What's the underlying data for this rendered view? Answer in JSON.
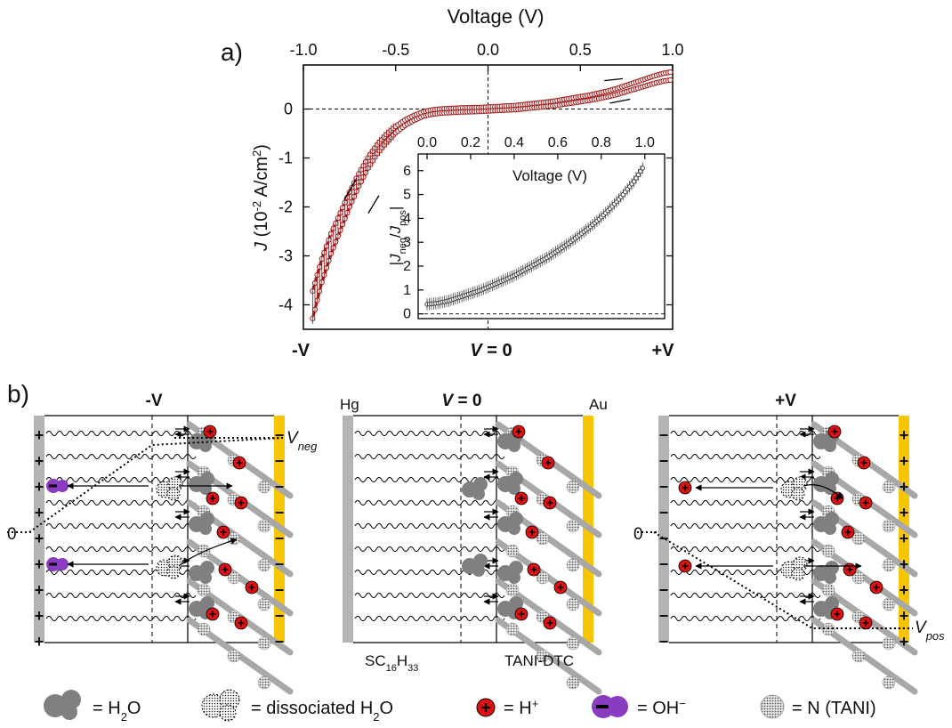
{
  "panel_a": {
    "label": "a)",
    "chart_data": {
      "type": "scatter",
      "xlabel": "Voltage (V)",
      "ylabel_italic": "J",
      "ylabel_rest": " (10",
      "ylabel_exp": "-2",
      "ylabel_unit": " A/cm",
      "ylabel_unit_exp": "2",
      "ylabel_close": ")",
      "xlim": [
        -1.0,
        1.0
      ],
      "ylim": [
        -4.5,
        0.9
      ],
      "xticks": [
        "-1.0",
        "-0.5",
        "0.0",
        "0.5",
        "1.0"
      ],
      "yticks": [
        "0",
        "-1",
        "-2",
        "-3",
        "-4"
      ],
      "series": [
        {
          "x": [
            -0.95,
            -0.9,
            -0.85,
            -0.8,
            -0.75,
            -0.7,
            -0.65,
            -0.6,
            -0.55,
            -0.5,
            -0.45,
            -0.4,
            -0.35,
            -0.3,
            -0.25,
            -0.2,
            -0.15,
            -0.1,
            -0.05,
            0.0,
            0.05,
            0.1,
            0.15,
            0.2,
            0.25,
            0.3,
            0.35,
            0.4,
            0.45,
            0.5,
            0.55,
            0.6,
            0.65,
            0.7,
            0.75,
            0.8,
            0.85,
            0.9,
            0.95,
            1.0
          ],
          "y": [
            -4.0,
            -3.3,
            -2.75,
            -2.3,
            -1.85,
            -1.45,
            -1.1,
            -0.82,
            -0.6,
            -0.42,
            -0.28,
            -0.18,
            -0.1,
            -0.06,
            -0.04,
            -0.03,
            -0.02,
            -0.015,
            -0.01,
            0.0,
            0.01,
            0.02,
            0.03,
            0.05,
            0.07,
            0.09,
            0.11,
            0.14,
            0.17,
            0.2,
            0.23,
            0.27,
            0.31,
            0.36,
            0.42,
            0.48,
            0.54,
            0.6,
            0.65,
            0.68
          ]
        }
      ],
      "inset": {
        "type": "scatter",
        "xlabel": "Voltage (V)",
        "ylabel_bar": "|",
        "ylabel_j": "J",
        "ylabel_neg": "neg",
        "ylabel_slash": "/",
        "ylabel_pos": "pos",
        "xlim": [
          0.0,
          1.05
        ],
        "ylim": [
          -0.2,
          6.7
        ],
        "xticks": [
          "0.0",
          "0.2",
          "0.4",
          "0.6",
          "0.8",
          "1.0"
        ],
        "yticks": [
          "0",
          "1",
          "2",
          "3",
          "4",
          "5",
          "6"
        ],
        "x": [
          0.0,
          0.05,
          0.1,
          0.15,
          0.2,
          0.25,
          0.3,
          0.35,
          0.4,
          0.45,
          0.5,
          0.55,
          0.6,
          0.65,
          0.7,
          0.75,
          0.8,
          0.85,
          0.9,
          0.95,
          1.0
        ],
        "y": [
          0.4,
          0.45,
          0.55,
          0.7,
          0.85,
          1.0,
          1.2,
          1.4,
          1.6,
          1.85,
          2.1,
          2.35,
          2.65,
          2.95,
          3.3,
          3.65,
          4.05,
          4.5,
          5.0,
          5.55,
          6.25
        ]
      }
    },
    "bottom_labels": {
      "neg": "-V",
      "zero_italic": "V",
      "zero_rest": " = 0",
      "pos": "+V"
    }
  },
  "panel_b": {
    "label": "b)",
    "left": {
      "title": "-V",
      "vlabel": "V",
      "vsub": "neg",
      "zero": "0"
    },
    "middle": {
      "title_italic": "V",
      "title_rest": " = 0",
      "hg": "Hg",
      "au": "Au",
      "sam": "SC",
      "sam_sub1": "16",
      "sam_h": "H",
      "sam_sub2": "33",
      "tani": "TANI-DTC"
    },
    "right": {
      "title": "+V",
      "vlabel": "V",
      "vsub": "pos",
      "zero": "0"
    }
  },
  "legend": {
    "h2o": "= H",
    "h2o_sub": "2",
    "h2o_o": "O",
    "dissociated": "= dissociated H",
    "dissociated_sub": "2",
    "dissociated_o": "O",
    "hplus": "= H",
    "hplus_sup": "+",
    "ohminus": "= OH",
    "ohminus_sup": "−",
    "n": "= N (TANI)"
  },
  "colors": {
    "curve": "#a01818",
    "gold": "#f7c600",
    "hg": "#b4b4b4",
    "proton": "#e01010",
    "hydroxide": "#8a3cc0",
    "water": "#808080"
  }
}
